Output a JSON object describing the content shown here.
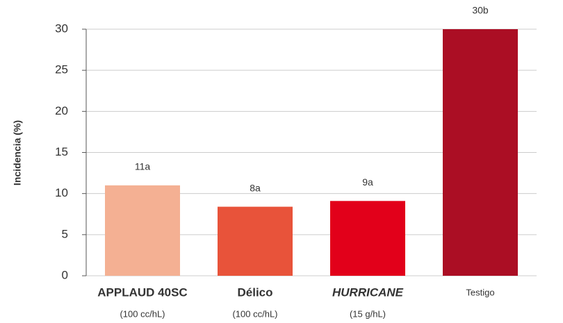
{
  "chart_data": {
    "type": "bar",
    "y_label": "Incidencia (%)",
    "categories": [
      "APPLAUD 40SC",
      "Délico",
      "HURRICANE",
      "Testigo"
    ],
    "category_label_colors": [
      "#1f8a3a",
      "#1f5fae",
      "#6aa32b",
      "#444444"
    ],
    "doses": [
      "(100 cc/hL)",
      "(100 cc/hL)",
      "(15 g/hL)",
      null
    ],
    "values": [
      11,
      8.4,
      9.1,
      30
    ],
    "value_labels": [
      "11a",
      "8a",
      "9a",
      "30b"
    ],
    "colors": [
      "#f4b093",
      "#e8533a",
      "#e2001a",
      "#ab0e24"
    ],
    "ylim": [
      0,
      30
    ],
    "yticks": [
      0,
      5,
      10,
      15,
      20,
      25,
      30
    ],
    "grid": true
  }
}
